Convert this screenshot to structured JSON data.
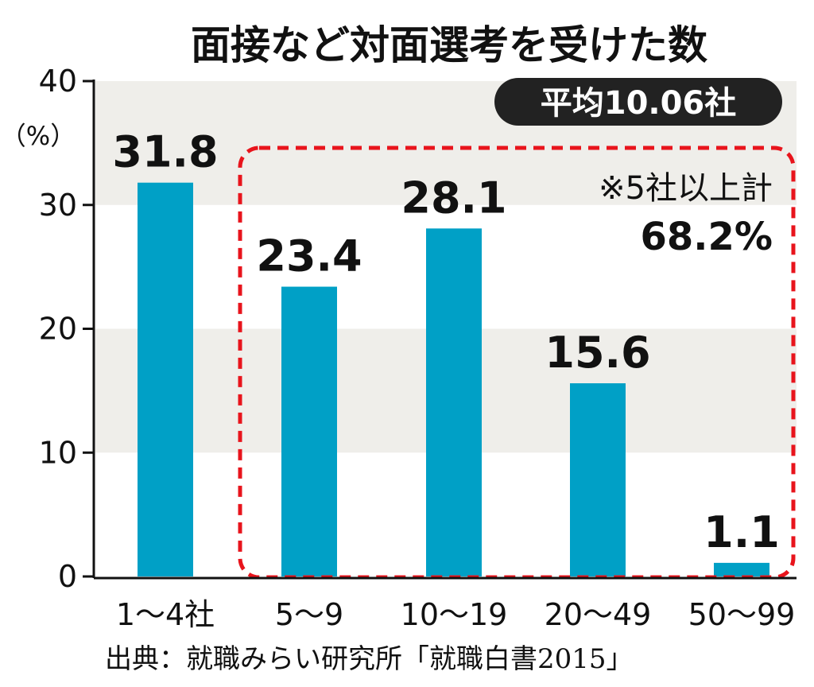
{
  "chart_data": {
    "type": "bar",
    "title": "面接など対面選考を受けた数",
    "ylabel": "（%）",
    "ylim": [
      0,
      40
    ],
    "yticks": [
      "0",
      "10",
      "20",
      "30",
      "40"
    ],
    "categories": [
      "1～4社",
      "5～9",
      "10～19",
      "20～49",
      "50～99"
    ],
    "values": [
      31.8,
      23.4,
      28.1,
      15.6,
      1.1
    ],
    "value_labels": [
      "31.8",
      "23.4",
      "28.1",
      "15.6",
      "1.1"
    ],
    "bar_color": "#00a0c6",
    "band_color": "#efeeea",
    "highlight_box_color": "#e8141c",
    "badge": "平均10.06社",
    "badge_color": "#222222",
    "annotation": {
      "line1": "※5社以上計",
      "line2": "68.2%"
    },
    "highlight_range": [
      "5～9",
      "50～99"
    ],
    "grid": "alternating bands",
    "legend": "none"
  },
  "source": "出典：就職みらい研究所「就職白書2015」"
}
